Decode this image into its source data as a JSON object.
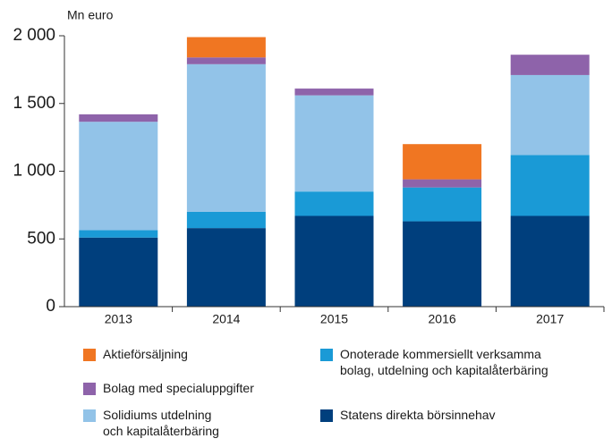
{
  "chart_data": {
    "type": "stacked_bar",
    "y_label": "Mn euro",
    "categories": [
      "2013",
      "2014",
      "2015",
      "2016",
      "2017"
    ],
    "series": [
      {
        "name": "Statens direkta börsinnehav",
        "color": "#003f7d",
        "values": [
          510,
          580,
          670,
          630,
          670
        ]
      },
      {
        "name": "Onoterade kommersiellt verksamma\nbolag, utdelning och kapitalåterbäring",
        "color": "#1a9ad6",
        "values": [
          55,
          120,
          180,
          250,
          450
        ]
      },
      {
        "name": "Solidiums utdelning\noch kapitalåterbäring",
        "color": "#92c3e8",
        "values": [
          800,
          1090,
          710,
          0,
          590
        ]
      },
      {
        "name": "Bolag med specialuppgifter",
        "color": "#8e63aa",
        "values": [
          55,
          50,
          50,
          60,
          150
        ]
      },
      {
        "name": "Aktieförsäljning",
        "color": "#f07622",
        "values": [
          0,
          150,
          0,
          260,
          0
        ]
      }
    ],
    "ylim": [
      0,
      2000
    ],
    "yticks": [
      0,
      500,
      {
        "value": 1000,
        "label": "1 000"
      },
      {
        "value": 1500,
        "label": "1 500"
      },
      {
        "value": 2000,
        "label": "2 000"
      }
    ],
    "grid": false
  }
}
